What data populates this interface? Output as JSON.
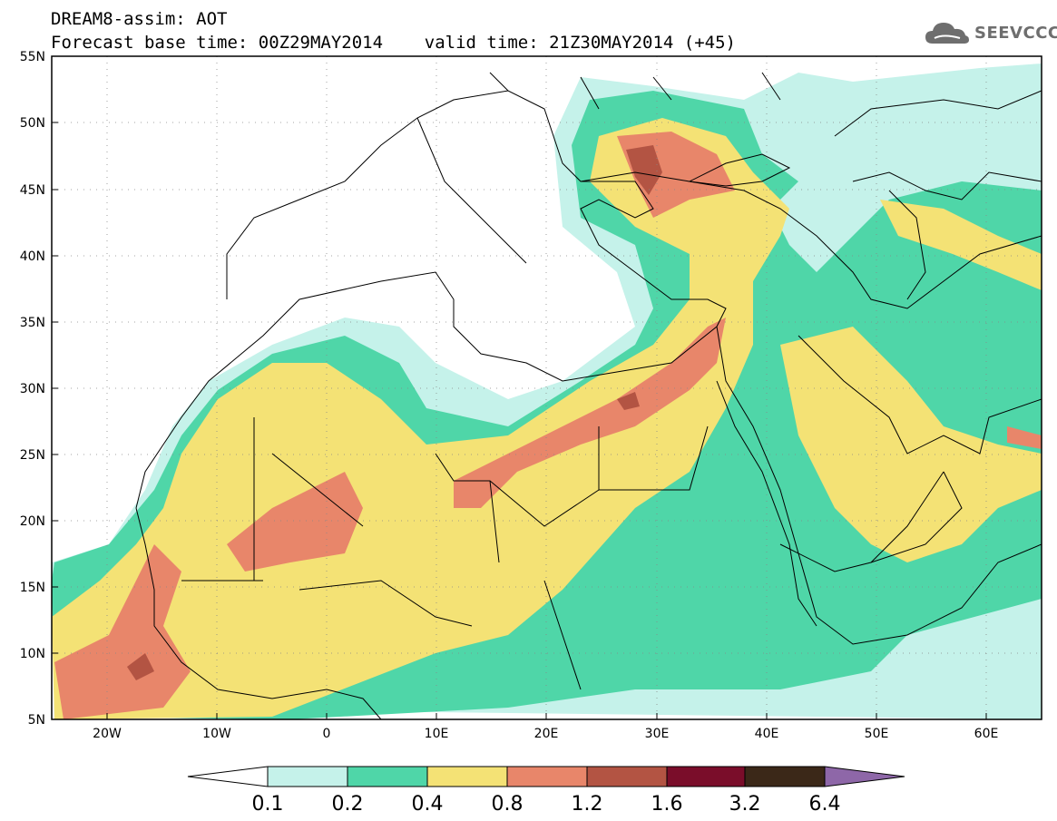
{
  "title": {
    "line1": "DREAM8-assim: AOT",
    "line2": "Forecast base time: 00Z29MAY2014    valid time: 21Z30MAY2014 (+45)"
  },
  "logo": {
    "text": "SEEVCCC",
    "icon": "cloud-icon"
  },
  "map": {
    "lon_range": [
      -25,
      65
    ],
    "lat_range": [
      5,
      55
    ],
    "lat_ticks": [
      "5N",
      "10N",
      "15N",
      "20N",
      "25N",
      "30N",
      "35N",
      "40N",
      "45N",
      "50N",
      "55N"
    ],
    "lon_ticks": [
      "20W",
      "10W",
      "0",
      "10E",
      "20E",
      "30E",
      "40E",
      "50E",
      "60E"
    ],
    "grid": "dotted"
  },
  "legend": {
    "levels": [
      "0.1",
      "0.2",
      "0.4",
      "0.8",
      "1.2",
      "1.6",
      "3.2",
      "6.4"
    ],
    "colors": [
      "#ffffff",
      "#c5f2ea",
      "#4fd6a8",
      "#f4e275",
      "#e8866a",
      "#b35443",
      "#7a0d2a",
      "#3b2818",
      "#8e67a8"
    ]
  }
}
